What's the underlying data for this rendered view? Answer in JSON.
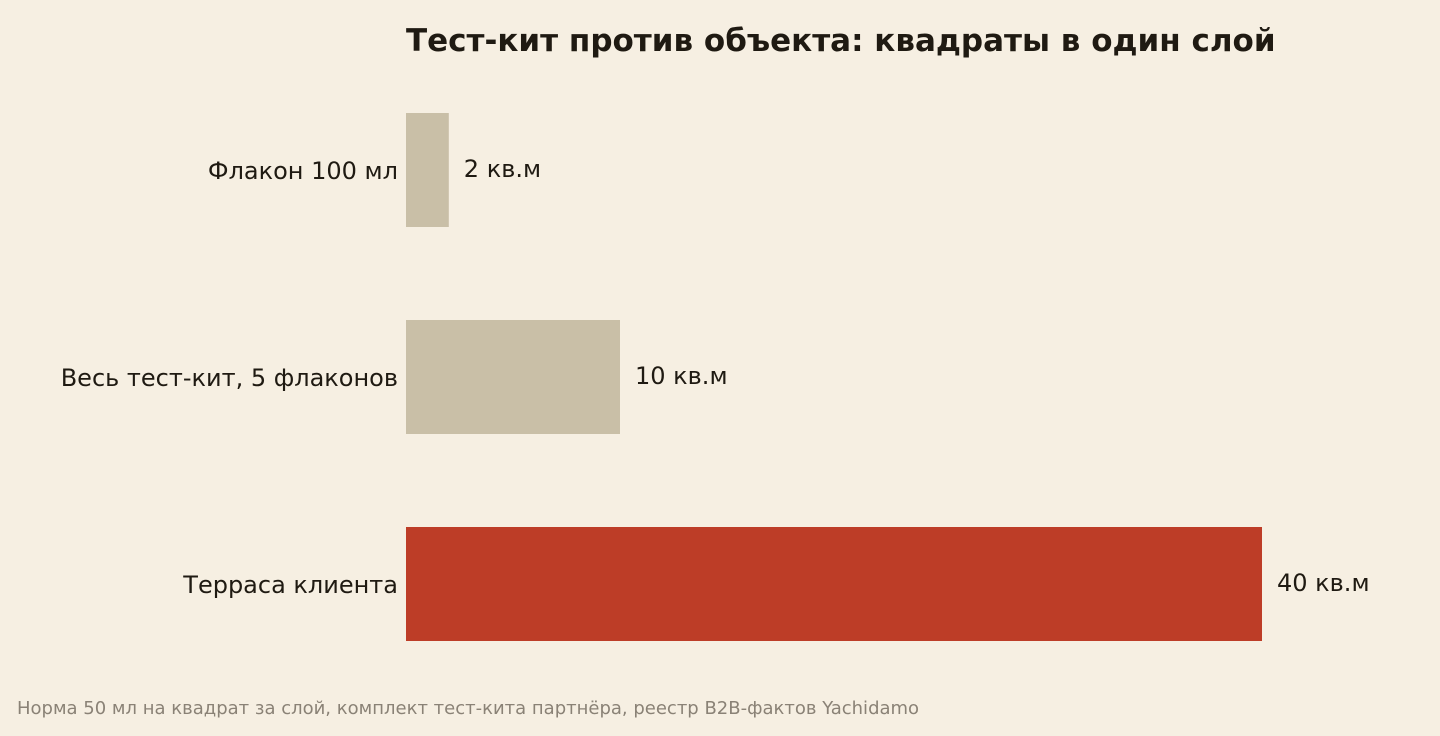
{
  "chart_data": {
    "type": "bar",
    "orientation": "horizontal",
    "title": "Тест-кит против объекта: квадраты в один слой",
    "categories": [
      "Флакон 100 мл",
      "Весь тест-кит, 5 флаконов",
      "Терраса клиента"
    ],
    "values": [
      2,
      10,
      40
    ],
    "value_labels": [
      "2 кв.м",
      "10 кв.м",
      "40 кв.м"
    ],
    "colors": [
      "#c9bfa7",
      "#c9bfa7",
      "#bd3d27"
    ],
    "xlim": [
      0,
      40
    ],
    "grid": false,
    "legend": "none"
  },
  "footer": {
    "source": "Норма 50 мл на квадрат за слой, комплект тест-кита партнёра, реестр B2B-фактов Yachidamo"
  }
}
